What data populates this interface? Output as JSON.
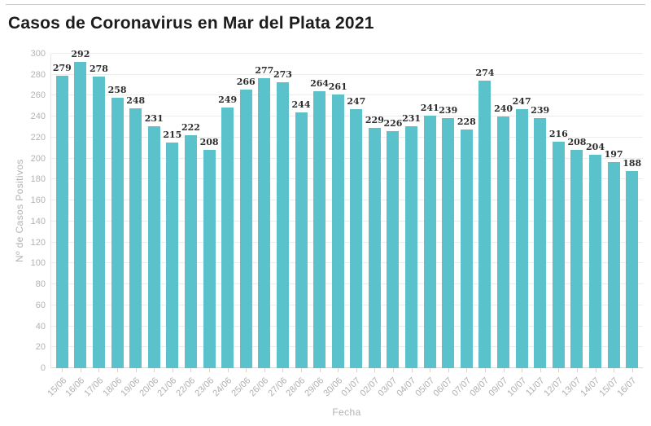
{
  "chart_data": {
    "type": "bar",
    "title": "Casos de Coronavirus en Mar del Plata 2021",
    "xlabel": "Fecha",
    "ylabel": "Nº de Casos Positivos",
    "ylim": [
      0,
      300
    ],
    "yticks": [
      0,
      20,
      40,
      60,
      80,
      100,
      120,
      140,
      160,
      180,
      200,
      220,
      240,
      260,
      280,
      300
    ],
    "grid": true,
    "legend": "none",
    "bar_color": "#5bc1ca",
    "categories": [
      "15/06",
      "16/06",
      "17/06",
      "18/06",
      "19/06",
      "20/06",
      "21/06",
      "22/06",
      "23/06",
      "24/06",
      "25/06",
      "26/06",
      "27/06",
      "28/06",
      "29/06",
      "30/06",
      "01/07",
      "02/07",
      "03/07",
      "04/07",
      "05/07",
      "06/07",
      "07/07",
      "08/07",
      "09/07",
      "10/07",
      "11/07",
      "12/07",
      "13/07",
      "14/07",
      "15/07",
      "16/07"
    ],
    "values": [
      279,
      292,
      278,
      258,
      248,
      231,
      215,
      222,
      208,
      249,
      266,
      277,
      273,
      244,
      264,
      261,
      247,
      229,
      226,
      231,
      241,
      239,
      228,
      274,
      240,
      247,
      239,
      216,
      208,
      204,
      197,
      188
    ]
  }
}
